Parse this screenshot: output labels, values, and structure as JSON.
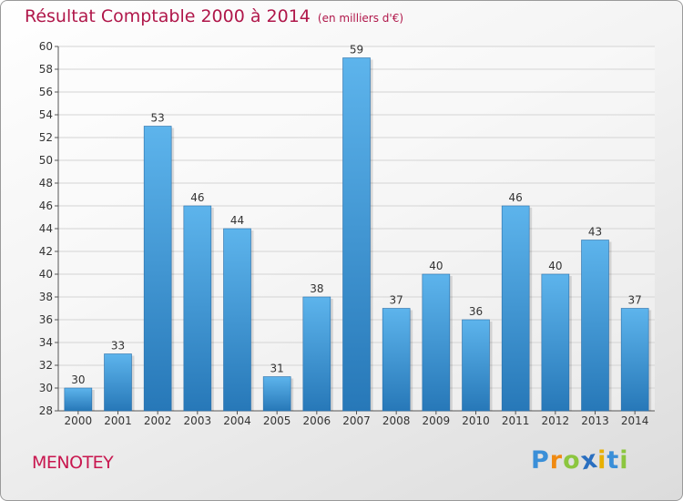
{
  "header": {
    "title": "Résultat Comptable 2000 à 2014",
    "unit": "(en milliers d'€)"
  },
  "footer": {
    "place": "MENOTEY",
    "logo_letters": [
      "P",
      "r",
      "o",
      "x",
      "i",
      "t",
      "i"
    ],
    "logo_colors": [
      "#3a8fd8",
      "#f08a12",
      "#8cc63f",
      "#2a6fc0",
      "#e8b000",
      "#3a8fd8",
      "#8cc63f"
    ]
  },
  "colors": {
    "bar_light": "#5db4ec",
    "bar_dark": "#2778b8",
    "grid": "#d4d4d4",
    "text": "#333333"
  },
  "chart_data": {
    "type": "bar",
    "title": "Résultat Comptable 2000 à 2014",
    "xlabel": "",
    "ylabel": "",
    "categories": [
      "2000",
      "2001",
      "2002",
      "2003",
      "2004",
      "2005",
      "2006",
      "2007",
      "2008",
      "2009",
      "2010",
      "2011",
      "2012",
      "2013",
      "2014"
    ],
    "values": [
      30,
      33,
      53,
      46,
      44,
      31,
      38,
      59,
      37,
      40,
      36,
      46,
      40,
      43,
      37
    ],
    "ylim": [
      28,
      60
    ],
    "yticks": [
      28,
      30,
      32,
      34,
      36,
      38,
      40,
      42,
      44,
      46,
      48,
      50,
      52,
      54,
      56,
      58,
      60
    ],
    "grid": true,
    "data_labels": true
  }
}
